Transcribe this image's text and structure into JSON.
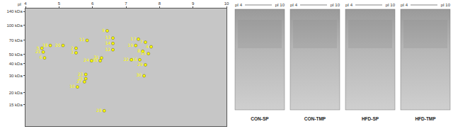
{
  "chart_data": {
    "type": "scatter",
    "x_label": "pI",
    "log": "y",
    "color": "#ffff00",
    "xlim": [
      4,
      10
    ],
    "xticks": [
      4,
      5,
      6,
      7,
      8,
      9,
      10
    ],
    "ylim": [
      9,
      150
    ],
    "yticks": [
      {
        "value": 140,
        "label": "140 kDa"
      },
      {
        "value": 100,
        "label": "100 kDa"
      },
      {
        "value": 70,
        "label": "70 kDa"
      },
      {
        "value": 50,
        "label": "50 kDa"
      },
      {
        "value": 40,
        "label": "40 kDa"
      },
      {
        "value": 30,
        "label": "30 kDa"
      },
      {
        "value": 20,
        "label": "20 kDa"
      },
      {
        "value": 15,
        "label": "15 kDa"
      }
    ],
    "labels": [
      "5",
      "18",
      "20",
      "21",
      "6",
      "11",
      "2",
      "3",
      "9",
      "13",
      "14",
      "12",
      "31",
      "24",
      "26",
      "23",
      "25",
      "27",
      "10",
      "28",
      "17",
      "19",
      "7",
      "4",
      "15",
      "22",
      "16",
      "29",
      "30",
      "8"
    ],
    "x": [
      4.49,
      4.74,
      5.12,
      4.53,
      4.57,
      5.84,
      5.51,
      5.51,
      6.44,
      6.61,
      6.61,
      6.61,
      6.27,
      5.97,
      6.23,
      5.8,
      5.8,
      5.76,
      5.55,
      6.35,
      7.37,
      7.29,
      7.58,
      7.75,
      7.67,
      7.16,
      7.41,
      7.58,
      7.54,
      7.5
    ],
    "values": [
      58,
      62,
      62,
      53,
      46,
      70,
      58,
      52,
      88,
      74,
      65,
      56,
      46,
      43,
      43,
      31,
      28,
      26,
      23,
      13,
      72,
      62,
      67,
      60,
      51,
      44,
      44,
      39,
      30,
      54
    ]
  },
  "panels": [
    {
      "caption": "CON-SP",
      "left": "pI 4",
      "right": "pI 10"
    },
    {
      "caption": "CON-TMP",
      "left": "pI 4",
      "right": "pI 10"
    },
    {
      "caption": "HFD-SP",
      "left": "pI 4",
      "right": "pI 10"
    },
    {
      "caption": "HFD-TMP",
      "left": "pI 4",
      "right": "pI 10"
    }
  ]
}
